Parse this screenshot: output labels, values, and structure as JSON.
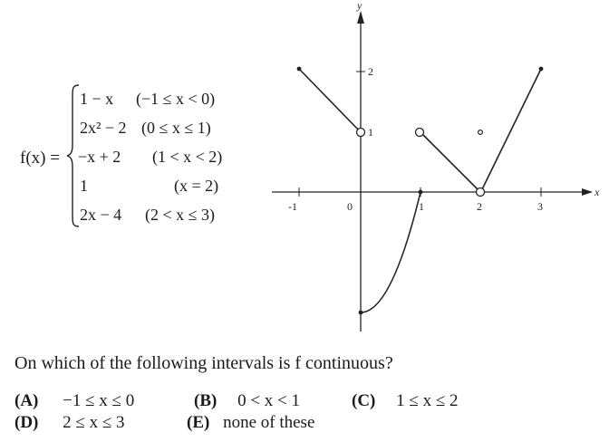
{
  "func": {
    "lhs": "f(x) =",
    "cases": [
      {
        "expr_a": "1 − x",
        "expr_b": "",
        "cond": "(−1 ≤ x < 0)"
      },
      {
        "expr_a": "2x",
        "expr_b": "² − 2",
        "cond": "(0 ≤ x ≤ 1)"
      },
      {
        "expr_a": "−x + 2",
        "expr_b": "",
        "cond": "(1 < x < 2)"
      },
      {
        "expr_a": "1",
        "expr_b": "",
        "cond": "(x = 2)"
      },
      {
        "expr_a": "2x − 4",
        "expr_b": "",
        "cond": "(2 < x ≤ 3)"
      }
    ]
  },
  "graph": {
    "x_label": "x",
    "y_label": "y",
    "x_ticks": [
      "-1",
      "0",
      "1",
      "2",
      "3"
    ],
    "y_ticks": [
      "2",
      "1"
    ],
    "xlim": [
      -1,
      3
    ],
    "ylim": [
      -2,
      2
    ]
  },
  "question": "On which of the following intervals is f continuous?",
  "choices": [
    {
      "label": "(A)",
      "text": "−1 ≤ x ≤ 0"
    },
    {
      "label": "(B)",
      "text": "0 < x < 1"
    },
    {
      "label": "(C)",
      "text": "1 ≤ x ≤ 2"
    },
    {
      "label": "(D)",
      "text": "2 ≤ x ≤ 3"
    },
    {
      "label": "(E)",
      "text": "none of these"
    }
  ]
}
